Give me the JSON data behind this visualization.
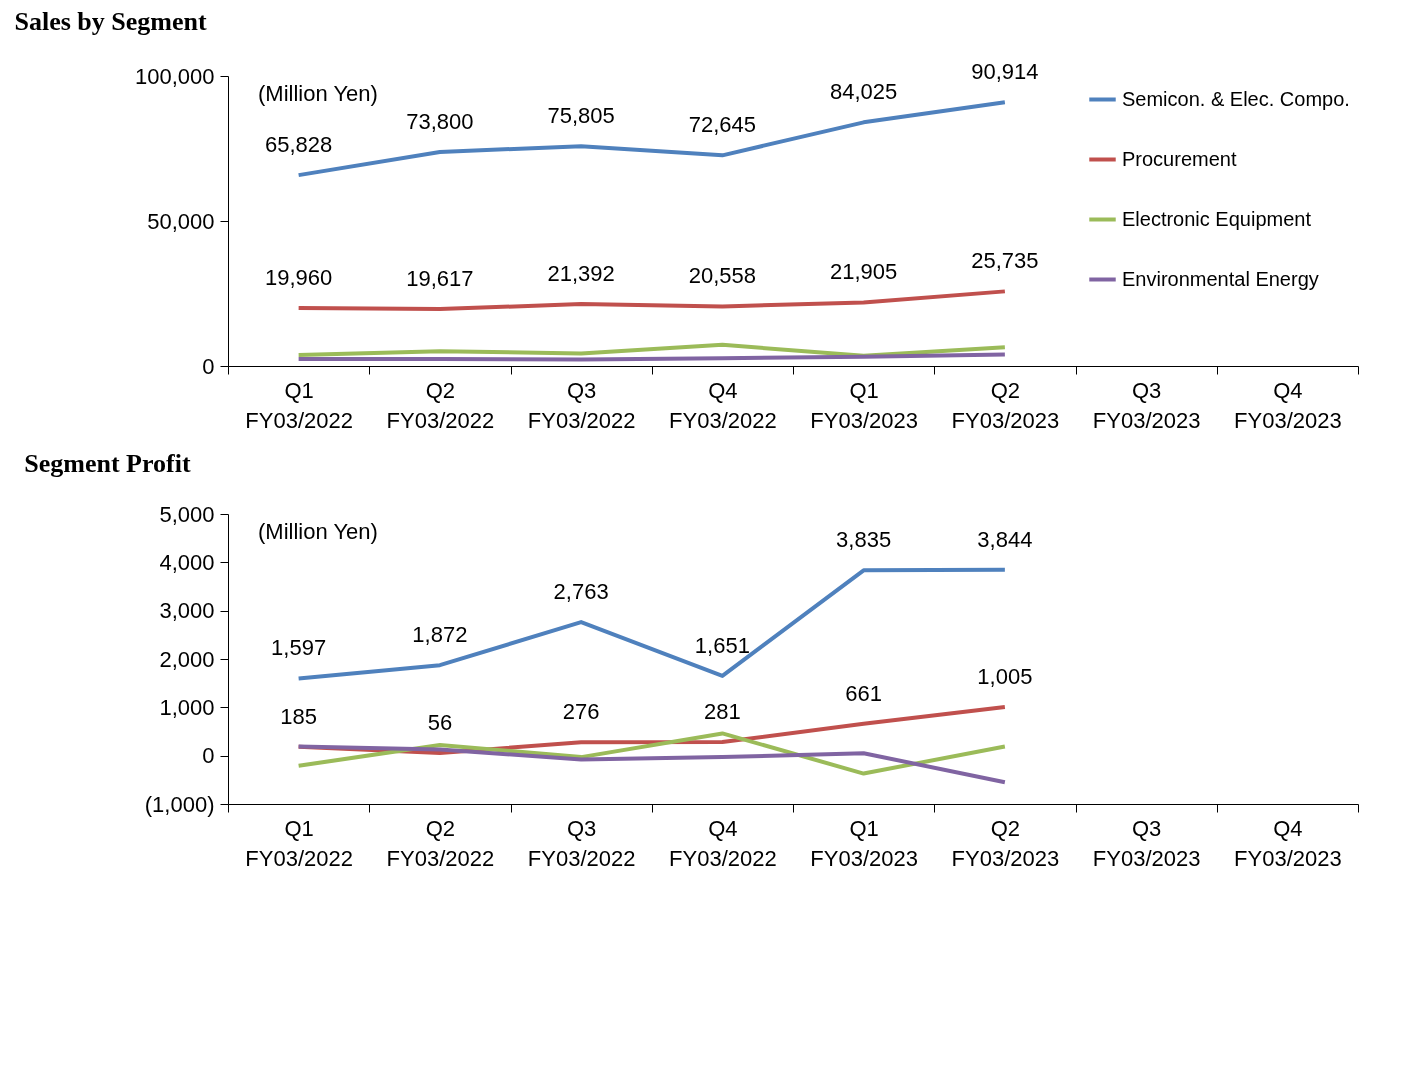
{
  "chart_data": [
    {
      "type": "line",
      "title": "Sales by Segment",
      "annotations": [
        "(Million Yen)"
      ],
      "categories": [
        "Q1\nFY03/2022",
        "Q2\nFY03/2022",
        "Q3\nFY03/2022",
        "Q4\nFY03/2022",
        "Q1\nFY03/2023",
        "Q2\nFY03/2023",
        "Q3\nFY03/2023",
        "Q4\nFY03/2023"
      ],
      "series": [
        {
          "name": "Semicon. & Elec. Compo.",
          "color": "#4f81bd",
          "values": [
            65828,
            73800,
            75805,
            72645,
            84025,
            90914,
            null,
            null
          ],
          "value_labels": [
            "65,828",
            "73,800",
            "75,805",
            "72,645",
            "84,025",
            "90,914",
            null,
            null
          ]
        },
        {
          "name": "Procurement",
          "color": "#c0504d",
          "values": [
            19960,
            19617,
            21392,
            20558,
            21905,
            25735,
            null,
            null
          ],
          "value_labels": [
            "19,960",
            "19,617",
            "21,392",
            "20,558",
            "21,905",
            "25,735",
            null,
            null
          ]
        },
        {
          "name": "Electronic Equipment",
          "color": "#9bbb59",
          "values": [
            3800,
            5100,
            4300,
            7300,
            3500,
            6500,
            null,
            null
          ]
        },
        {
          "name": "Environmental Energy",
          "color": "#8064a2",
          "values": [
            2400,
            2400,
            2200,
            2700,
            3200,
            4000,
            null,
            null
          ]
        }
      ],
      "ylim": [
        0,
        100000
      ],
      "yticks": [
        0,
        {
          "value": 50000,
          "label": "50,000"
        },
        {
          "value": 100000,
          "label": "100,000"
        }
      ],
      "grid": false,
      "legend": "top right",
      "marker": "none",
      "line_style": "solid"
    },
    {
      "type": "line",
      "title": "Segment Profit",
      "annotations": [
        "(Million Yen)"
      ],
      "categories": [
        "Q1\nFY03/2022",
        "Q2\nFY03/2022",
        "Q3\nFY03/2022",
        "Q4\nFY03/2022",
        "Q1\nFY03/2023",
        "Q2\nFY03/2023",
        "Q3\nFY03/2023",
        "Q4\nFY03/2023"
      ],
      "series": [
        {
          "name": "Semicon. & Elec. Compo.",
          "color": "#4f81bd",
          "values": [
            1597,
            1872,
            2763,
            1651,
            3835,
            3844,
            null,
            null
          ],
          "value_labels": [
            "1,597",
            "1,872",
            "2,763",
            "1,651",
            "3,835",
            "3,844",
            null,
            null
          ]
        },
        {
          "name": "Procurement",
          "color": "#c0504d",
          "values": [
            185,
            56,
            276,
            281,
            661,
            1005,
            null,
            null
          ],
          "value_labels": [
            "185",
            "56",
            "276",
            "281",
            "661",
            "1,005",
            null,
            null
          ]
        },
        {
          "name": "Electronic Equipment",
          "color": "#9bbb59",
          "values": [
            -210,
            220,
            -30,
            460,
            -370,
            190,
            null,
            null
          ]
        },
        {
          "name": "Environmental Energy",
          "color": "#8064a2",
          "values": [
            190,
            130,
            -80,
            -30,
            50,
            -550,
            null,
            null
          ]
        }
      ],
      "ylim": [
        -1000,
        5000
      ],
      "yticks": [
        {
          "value": -1000,
          "label": "(1,000)"
        },
        0,
        {
          "value": 1000,
          "label": "1,000"
        },
        {
          "value": 2000,
          "label": "2,000"
        },
        {
          "value": 3000,
          "label": "3,000"
        },
        {
          "value": 4000,
          "label": "4,000"
        },
        {
          "value": 5000,
          "label": "5,000"
        }
      ],
      "grid": false,
      "legend": "top right",
      "marker": "none",
      "line_style": "solid"
    }
  ]
}
